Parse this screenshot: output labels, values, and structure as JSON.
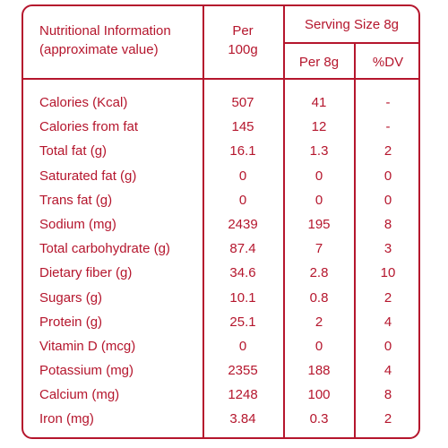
{
  "header": {
    "title_line1": "Nutritional Information",
    "title_line2": "(approximate value)",
    "per_line1": "Per",
    "per_line2": "100g",
    "serving_size": "Serving Size 8g",
    "per_8g": "Per 8g",
    "dv": "%DV"
  },
  "rows": [
    {
      "name": "Calories (Kcal)",
      "per100": "507",
      "per8": "41",
      "dv": "-"
    },
    {
      "name": "Calories from fat",
      "per100": "145",
      "per8": "12",
      "dv": "-"
    },
    {
      "name": "Total fat (g)",
      "per100": "16.1",
      "per8": "1.3",
      "dv": "2"
    },
    {
      "name": "Saturated fat (g)",
      "per100": "0",
      "per8": "0",
      "dv": "0"
    },
    {
      "name": "Trans fat (g)",
      "per100": "0",
      "per8": "0",
      "dv": "0"
    },
    {
      "name": "Sodium (mg)",
      "per100": "2439",
      "per8": "195",
      "dv": "8"
    },
    {
      "name": "Total carbohydrate (g)",
      "per100": "87.4",
      "per8": "7",
      "dv": "3"
    },
    {
      "name": "Dietary fiber (g)",
      "per100": "34.6",
      "per8": "2.8",
      "dv": "10"
    },
    {
      "name": "Sugars (g)",
      "per100": "10.1",
      "per8": "0.8",
      "dv": "2"
    },
    {
      "name": "Protein (g)",
      "per100": "25.1",
      "per8": "2",
      "dv": "4"
    },
    {
      "name": "Vitamin D (mcg)",
      "per100": "0",
      "per8": "0",
      "dv": "0"
    },
    {
      "name": "Potassium (mg)",
      "per100": "2355",
      "per8": "188",
      "dv": "4"
    },
    {
      "name": "Calcium (mg)",
      "per100": "1248",
      "per8": "100",
      "dv": "8"
    },
    {
      "name": "Iron (mg)",
      "per100": "3.84",
      "per8": "0.3",
      "dv": "2"
    }
  ],
  "colors": {
    "accent": "#b5162d"
  }
}
